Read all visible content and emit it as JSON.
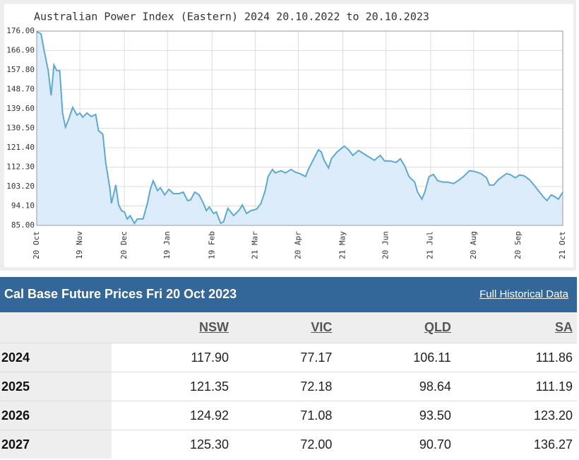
{
  "chart_data": {
    "type": "line",
    "title": "Australian Power Index (Eastern) 2024 20.10.2022 to 20.10.2023",
    "color": "#5aa9d6",
    "fill": "#dcecfb",
    "grid": true,
    "xlim": [
      0,
      366
    ],
    "xticks": [
      {
        "value": 0,
        "label": "20 Oct"
      },
      {
        "value": 30,
        "label": "19 Nov"
      },
      {
        "value": 61,
        "label": "20 Dec"
      },
      {
        "value": 91,
        "label": "19 Jan"
      },
      {
        "value": 122,
        "label": "19 Feb"
      },
      {
        "value": 152,
        "label": "21 Mar"
      },
      {
        "value": 182,
        "label": "20 Apr"
      },
      {
        "value": 213,
        "label": "21 May"
      },
      {
        "value": 243,
        "label": "20 Jun"
      },
      {
        "value": 274,
        "label": "21 Jul"
      },
      {
        "value": 304,
        "label": "20 Aug"
      },
      {
        "value": 335,
        "label": "20 Sep"
      },
      {
        "value": 366,
        "label": "21 Oct"
      }
    ],
    "ylim": [
      85,
      176
    ],
    "yticks": [
      {
        "value": 85,
        "label": "85.00"
      },
      {
        "value": 94.1,
        "label": "94.10"
      },
      {
        "value": 103.2,
        "label": "103.20"
      },
      {
        "value": 112.3,
        "label": "112.30"
      },
      {
        "value": 121.4,
        "label": "121.40"
      },
      {
        "value": 130.5,
        "label": "130.50"
      },
      {
        "value": 139.6,
        "label": "139.60"
      },
      {
        "value": 148.7,
        "label": "148.70"
      },
      {
        "value": 157.8,
        "label": "157.80"
      },
      {
        "value": 166.9,
        "label": "166.90"
      },
      {
        "value": 176,
        "label": "176.00"
      }
    ],
    "x": [
      0,
      3,
      5,
      8,
      10,
      12,
      14,
      16,
      18,
      20,
      22,
      25,
      28,
      30,
      32,
      35,
      38,
      41,
      43,
      46,
      48,
      51,
      52,
      55,
      57,
      59,
      61,
      63,
      65,
      68,
      70,
      74,
      77,
      79,
      81,
      84,
      86,
      89,
      92,
      95,
      99,
      102,
      105,
      107,
      110,
      113,
      116,
      118,
      120,
      123,
      125,
      128,
      130,
      133,
      135,
      137,
      141,
      143,
      146,
      149,
      153,
      156,
      159,
      161,
      164,
      166,
      170,
      173,
      177,
      180,
      183,
      187,
      189,
      192,
      196,
      198,
      200,
      203,
      205,
      209,
      214,
      217,
      220,
      224,
      228,
      231,
      235,
      239,
      242,
      246,
      250,
      253,
      256,
      259,
      263,
      265,
      268,
      270,
      273,
      276,
      279,
      283,
      286,
      290,
      294,
      297,
      301,
      305,
      309,
      313,
      315,
      318,
      321,
      324,
      327,
      330,
      333,
      336,
      339,
      343,
      346,
      349,
      353,
      355,
      358,
      360,
      363,
      366
    ],
    "values": [
      175.7,
      174.7,
      167.4,
      157.5,
      145.9,
      160.1,
      157.5,
      157.5,
      137.6,
      131,
      134.3,
      140.3,
      136.7,
      137.6,
      135.7,
      137.6,
      136,
      137,
      129.4,
      127.7,
      114.5,
      101.9,
      95.3,
      103.9,
      94.6,
      91.9,
      91.3,
      88,
      89.6,
      86,
      88,
      88,
      95.3,
      101.9,
      105.9,
      101.3,
      102.6,
      99.3,
      101.9,
      99.9,
      99.9,
      100.6,
      96.6,
      96.9,
      100.6,
      99.3,
      95.3,
      91.9,
      93.6,
      90.6,
      91.3,
      86,
      86.7,
      93,
      91.3,
      89.6,
      92.3,
      94.6,
      90.6,
      91.9,
      92.6,
      95.3,
      101.3,
      107.9,
      111.2,
      109.6,
      110.6,
      109.6,
      111.2,
      109.9,
      109.3,
      107.9,
      111.2,
      115.2,
      120.4,
      119.4,
      115.5,
      111.9,
      116.2,
      119.4,
      122.1,
      120.4,
      117.8,
      120.1,
      118.4,
      117.1,
      115.5,
      117.8,
      115.2,
      115.2,
      114.5,
      116.2,
      112.9,
      107.9,
      105.3,
      100.6,
      97.3,
      100.6,
      107.9,
      108.9,
      105.9,
      105.3,
      105.3,
      104.6,
      106.3,
      107.9,
      110.6,
      110.2,
      109.3,
      107.3,
      103.9,
      103.9,
      106.3,
      107.9,
      109.3,
      108.6,
      107.3,
      108.6,
      108.3,
      106.3,
      103.9,
      101.3,
      98,
      96.6,
      99.3,
      98.6,
      97.3,
      100.6
    ]
  },
  "table": {
    "title": "Cal Base Future Prices Fri 20 Oct 2023",
    "link": "Full Historical Data",
    "columns": [
      "NSW",
      "VIC",
      "QLD",
      "SA"
    ],
    "rows": [
      [
        "2024",
        "117.90",
        "77.17",
        "106.11",
        "111.86"
      ],
      [
        "2025",
        "121.35",
        "72.18",
        "98.64",
        "111.19"
      ],
      [
        "2026",
        "124.92",
        "71.08",
        "93.50",
        "123.20"
      ],
      [
        "2027",
        "125.30",
        "72.00",
        "90.70",
        "136.27"
      ]
    ]
  }
}
